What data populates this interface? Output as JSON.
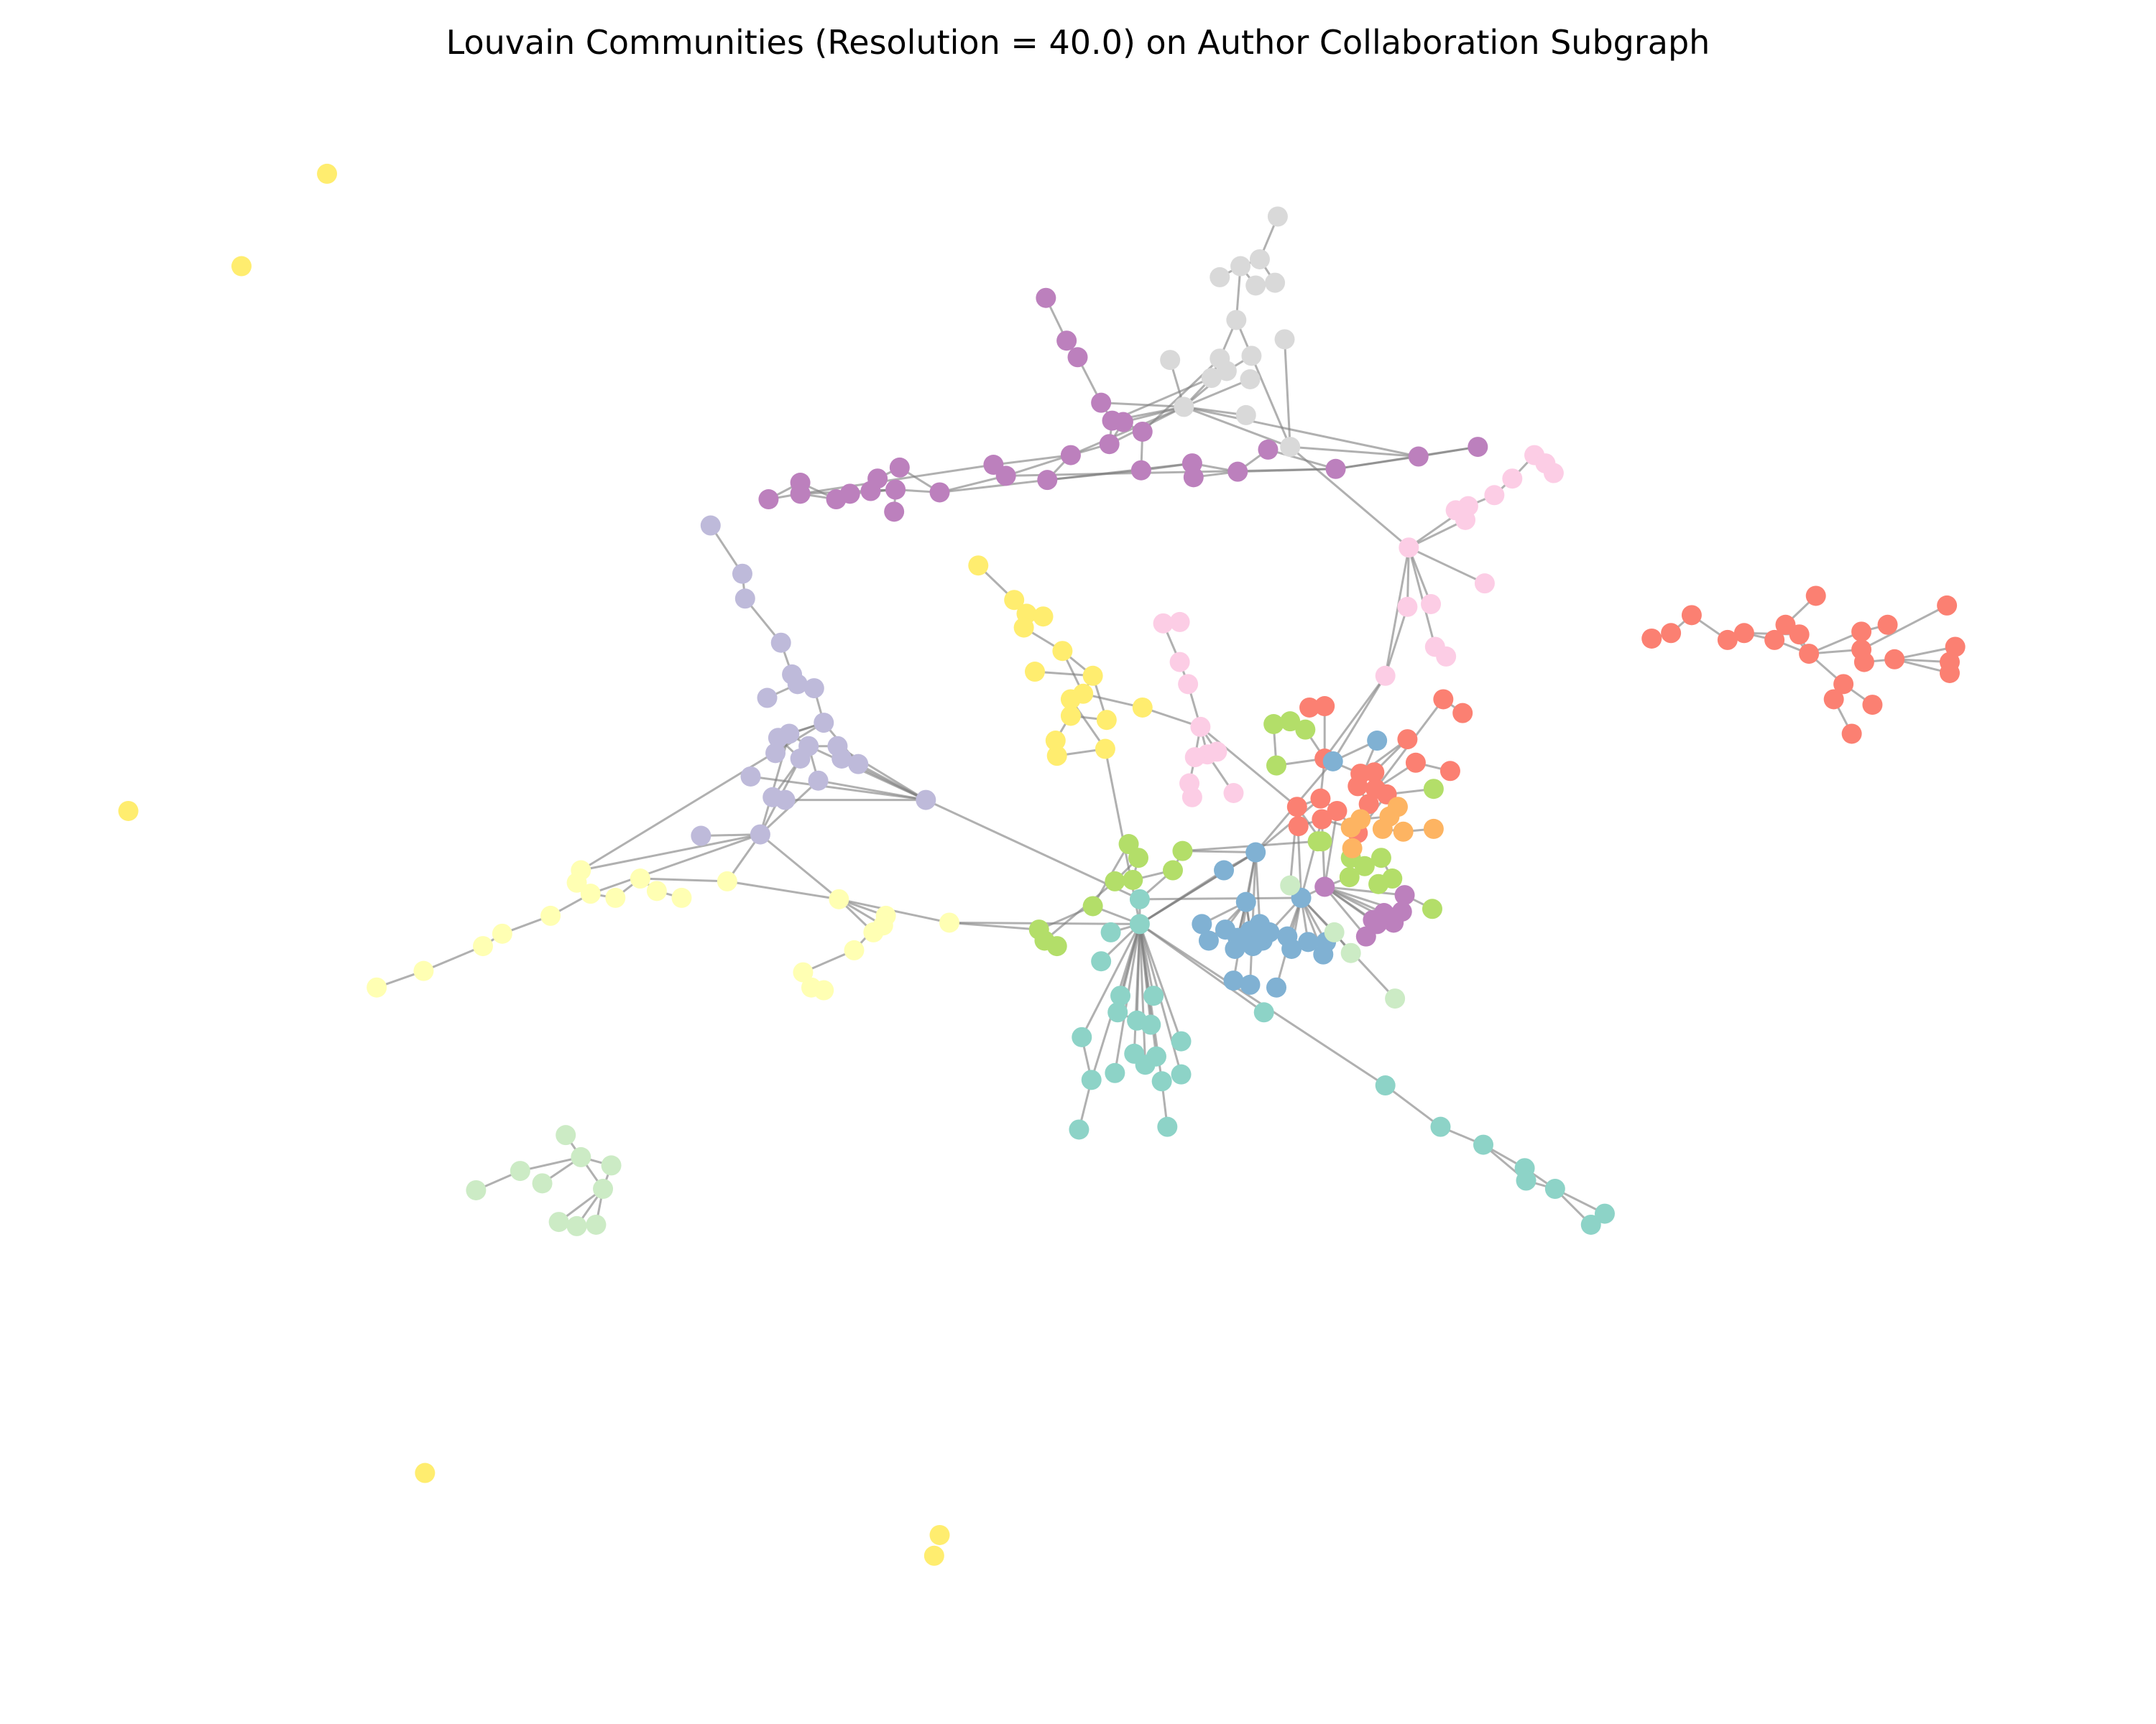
{
  "title": "Louvain Communities (Resolution = 40.0) on Author Collaboration Subgraph",
  "chart_data": {
    "type": "network",
    "community_colors": {
      "teal": "#8dd3c7",
      "light_yellow": "#ffffb3",
      "lavender": "#bebada",
      "salmon": "#fb8072",
      "blue": "#80b1d3",
      "orange": "#fdb462",
      "lime": "#b3de69",
      "pink": "#fccde5",
      "grey": "#d9d9d9",
      "purple": "#bc80bd",
      "mint": "#ccebc5",
      "yellow": "#ffed6f"
    },
    "communities": [
      "teal",
      "light_yellow",
      "lavender",
      "salmon",
      "blue",
      "orange",
      "lime",
      "pink",
      "grey",
      "purple",
      "mint",
      "yellow"
    ],
    "axes_visible": false,
    "legend": "none"
  }
}
